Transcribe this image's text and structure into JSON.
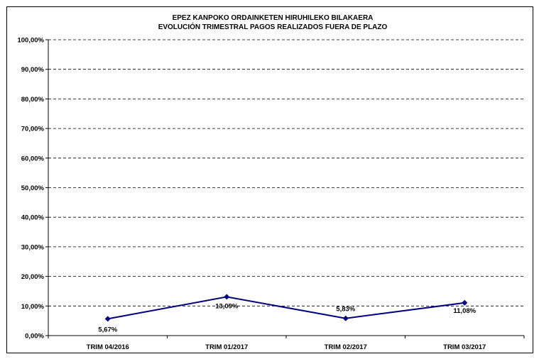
{
  "chart_data": {
    "type": "line",
    "title": "EPEZ KANPOKO ORDAINKETEN HIRUHILEKO BILAKAERA",
    "subtitle": "EVOLUCIÓN TRIMESTRAL PAGOS REALIZADOS FUERA DE PLAZO",
    "xlabel": "",
    "ylabel": "",
    "categories": [
      "TRIM 04/2016",
      "TRIM 01/2017",
      "TRIM 02/2017",
      "TRIM 03/2017"
    ],
    "values": [
      5.67,
      13.09,
      5.83,
      11.08
    ],
    "data_labels": [
      "5,67%",
      "13,09%",
      "5,83%",
      "11,08%"
    ],
    "y_ticks": [
      "0,00%",
      "10,00%",
      "20,00%",
      "30,00%",
      "40,00%",
      "50,00%",
      "60,00%",
      "70,00%",
      "80,00%",
      "90,00%",
      "100,00%"
    ],
    "ylim": [
      0,
      100
    ],
    "grid": "horizontal dashed",
    "legend": "none",
    "colors": {
      "line": "#00007f",
      "grid": "#000000"
    }
  }
}
